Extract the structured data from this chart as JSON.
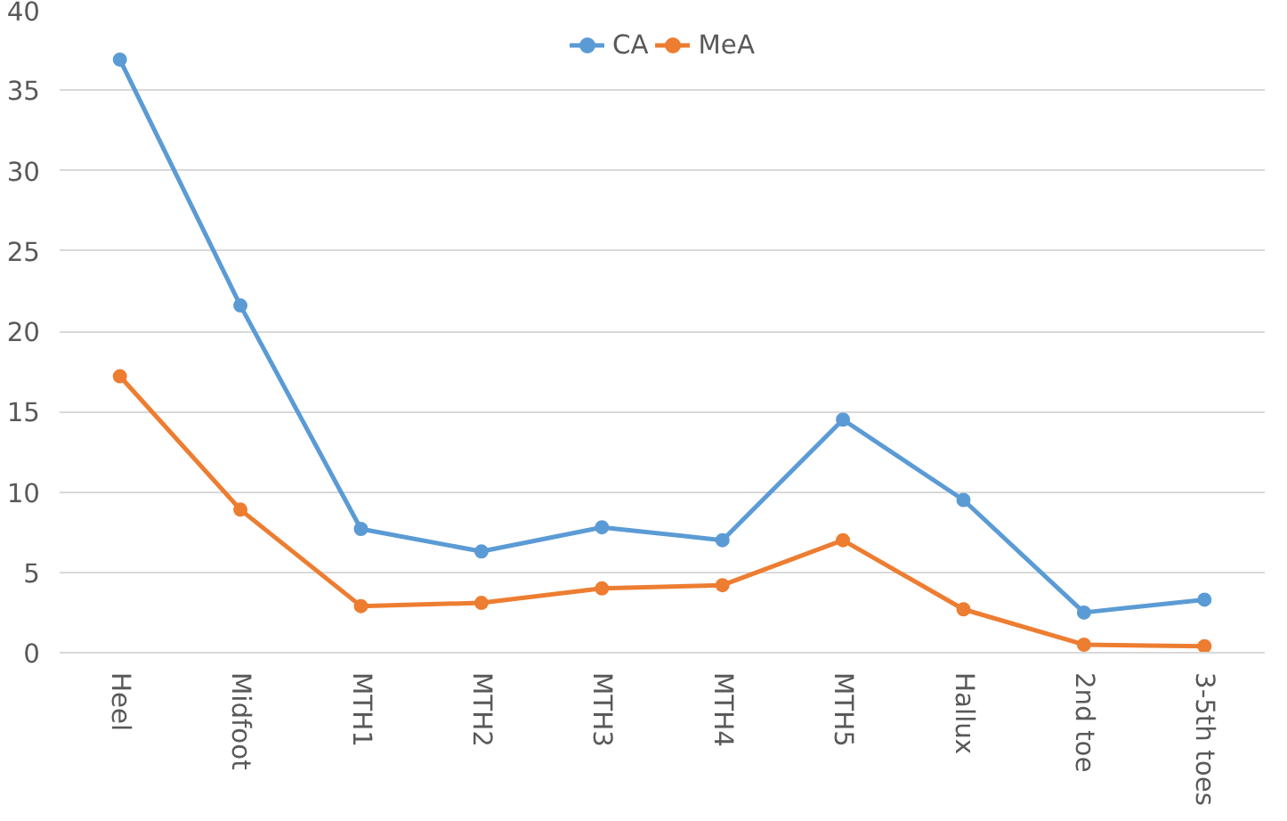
{
  "chart_data": {
    "type": "line",
    "categories": [
      "Heel",
      "Midfoot",
      "MTH1",
      "MTH2",
      "MTH3",
      "MTH4",
      "MTH5",
      "Hallux",
      "2nd toe",
      "3-5th toes"
    ],
    "series": [
      {
        "name": "CA",
        "color": "#5b9bd5",
        "values": [
          36.9,
          21.6,
          7.7,
          6.3,
          7.8,
          7.0,
          14.5,
          9.5,
          2.5,
          3.3
        ]
      },
      {
        "name": "MeA",
        "color": "#ed7d31",
        "values": [
          17.2,
          8.9,
          2.9,
          3.1,
          4.0,
          4.2,
          7.0,
          2.7,
          0.5,
          0.4
        ]
      }
    ],
    "ylim": [
      0,
      40
    ],
    "yticks": [
      0,
      5,
      10,
      15,
      20,
      25,
      30,
      35,
      40
    ],
    "grid": "y",
    "legend": "top",
    "marker": "circle",
    "line_style": "solid"
  }
}
